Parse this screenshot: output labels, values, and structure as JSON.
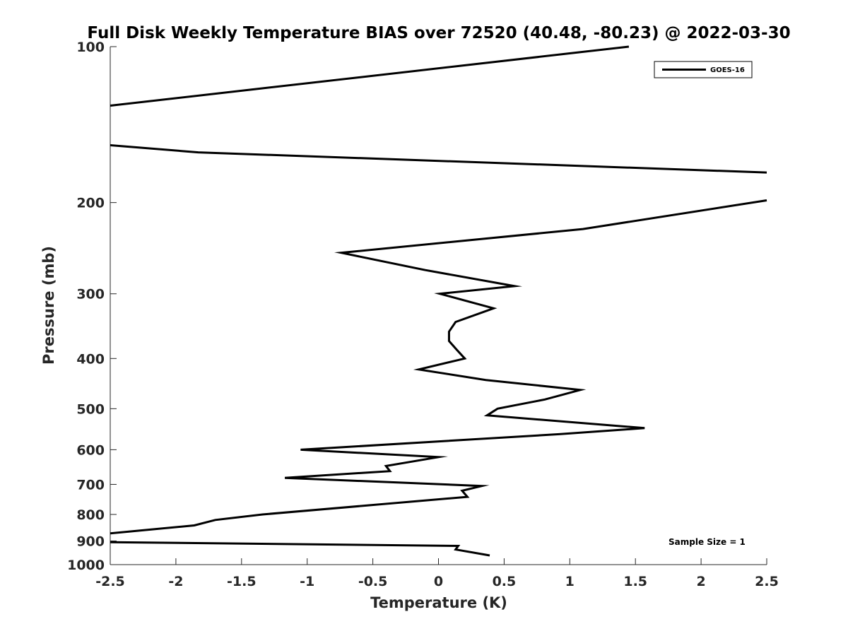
{
  "chart_data": {
    "type": "line",
    "title": "Full Disk Weekly Temperature BIAS over 72520 (40.48, -80.23) @ 2022-03-30",
    "xlabel": "Temperature (K)",
    "ylabel": "Pressure (mb)",
    "xlim": [
      -2.5,
      2.5
    ],
    "ylim": [
      1000,
      100
    ],
    "yscale": "log",
    "y_reversed": true,
    "x_ticks": [
      -2.5,
      -2,
      -1.5,
      -1,
      -0.5,
      0,
      0.5,
      1,
      1.5,
      2,
      2.5
    ],
    "x_tick_labels": [
      "-2.5",
      "-2",
      "-1.5",
      "-1",
      "-0.5",
      "0",
      "0.5",
      "1",
      "1.5",
      "2",
      "2.5"
    ],
    "y_ticks": [
      100,
      200,
      300,
      400,
      500,
      600,
      700,
      800,
      900,
      1000
    ],
    "y_tick_labels": [
      "100",
      "200",
      "300",
      "400",
      "500",
      "600",
      "700",
      "800",
      "900",
      "1000"
    ],
    "grid": false,
    "legend_position": "top-right",
    "series": [
      {
        "name": "GOES-16",
        "color": "#000000",
        "segments": [
          {
            "x": [
              1.45,
              -2.5
            ],
            "y": [
              100,
              130
            ]
          },
          {
            "x": [
              -2.5,
              -1.83,
              2.5
            ],
            "y": [
              155,
              160,
              175
            ]
          },
          {
            "x": [
              2.5,
              1.1,
              -0.74,
              -0.1,
              0.58,
              0.01,
              0.42,
              0.13,
              0.08,
              0.08,
              0.14,
              0.2,
              -0.15,
              0.36,
              1.08,
              0.81,
              0.45,
              0.37,
              1.57,
              0.92,
              -1.05,
              0.0,
              -0.4,
              -0.37,
              -1.17,
              0.33,
              0.18,
              0.22,
              -1.34,
              -1.7,
              -1.86,
              -2.5
            ],
            "y": [
              198,
              225,
              250,
              270,
              290,
              300,
              320,
              340,
              355,
              370,
              385,
              400,
              420,
              440,
              460,
              480,
              500,
              515,
              545,
              560,
              600,
              620,
              645,
              660,
              680,
              705,
              720,
              740,
              800,
              820,
              840,
              870
            ]
          },
          {
            "x": [
              -2.5,
              0.15,
              0.13,
              0.39
            ],
            "y": [
              905,
              920,
              935,
              960
            ]
          }
        ]
      }
    ],
    "annotations": [
      {
        "text": "Sample Size = 1",
        "x": 2.2,
        "y": 900
      }
    ]
  }
}
